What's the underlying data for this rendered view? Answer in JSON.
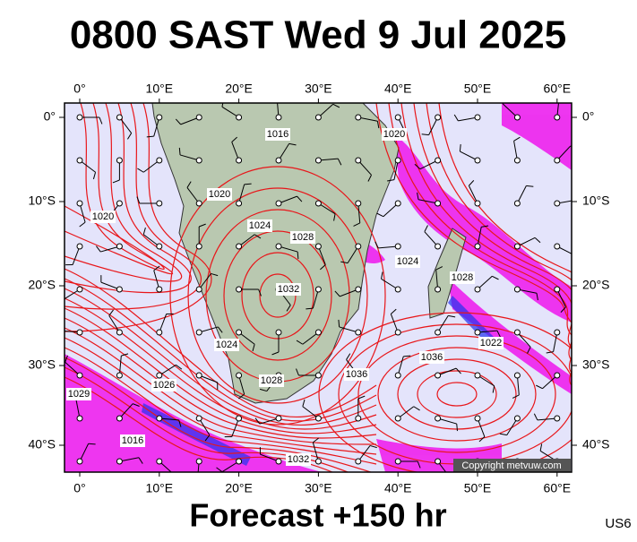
{
  "title": "0800 SAST Wed 9 Jul 2025",
  "footer": "Forecast +150 hr",
  "corner": "US6",
  "copyright": "Copyright metvuw.com",
  "lon_ticks": [
    {
      "value": 0,
      "label": "0°"
    },
    {
      "value": 10,
      "label": "10°E"
    },
    {
      "value": 20,
      "label": "20°E"
    },
    {
      "value": 30,
      "label": "30°E"
    },
    {
      "value": 40,
      "label": "40°E"
    },
    {
      "value": 50,
      "label": "50°E"
    },
    {
      "value": 60,
      "label": "60°E"
    }
  ],
  "lat_ticks": [
    {
      "value": 0,
      "label": "0°"
    },
    {
      "value": -10,
      "label": "10°S"
    },
    {
      "value": -20,
      "label": "20°S"
    },
    {
      "value": -30,
      "label": "30°S"
    },
    {
      "value": -40,
      "label": "40°S"
    }
  ],
  "isobar_labels": [
    1016,
    1020,
    1020,
    1024,
    1028,
    1032,
    1024,
    1028,
    1026,
    1036,
    1024,
    1028,
    1022,
    1036,
    1020,
    1029,
    1016,
    1032
  ]
}
